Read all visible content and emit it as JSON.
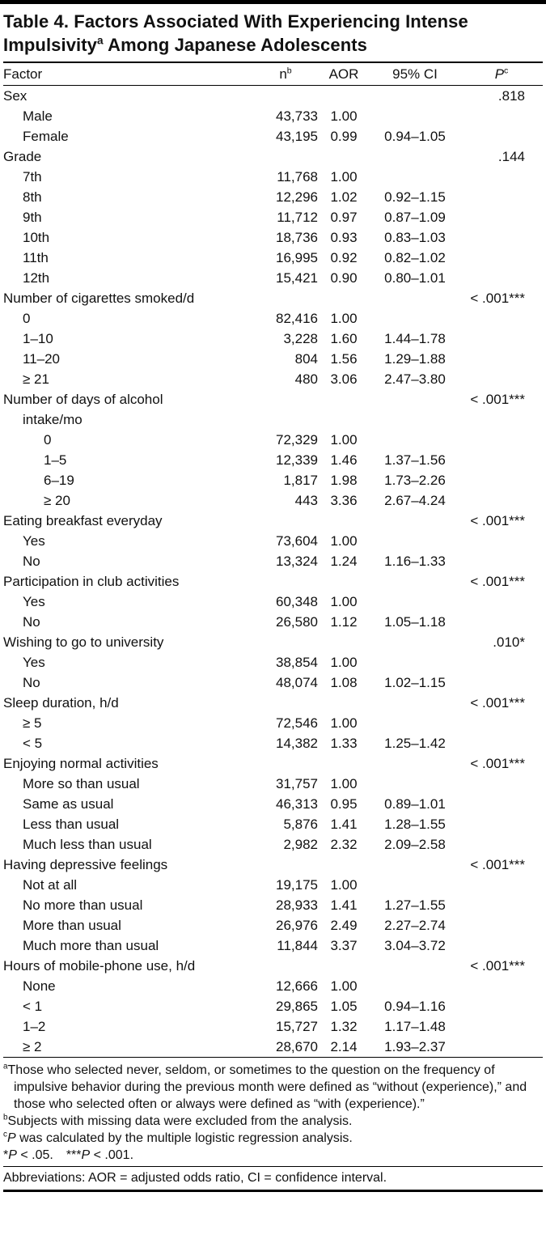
{
  "title": {
    "line1": "Table 4. Factors Associated With Experiencing Intense",
    "line2_pre": "Impulsivity",
    "line2_sup": "a",
    "line2_post": " Among Japanese Adolescents"
  },
  "table": {
    "headers": {
      "factor": "Factor",
      "n": "n",
      "n_sup": "b",
      "aor": "AOR",
      "ci": "95% CI",
      "p": "P",
      "p_sup": "c"
    },
    "rows": [
      {
        "label": "Sex",
        "indent": 0,
        "n": "",
        "aor": "",
        "ci": "",
        "p": ".818"
      },
      {
        "label": "Male",
        "indent": 1,
        "n": "43,733",
        "aor": "1.00",
        "ci": "",
        "p": ""
      },
      {
        "label": "Female",
        "indent": 1,
        "n": "43,195",
        "aor": "0.99",
        "ci": "0.94–1.05",
        "p": ""
      },
      {
        "label": "Grade",
        "indent": 0,
        "n": "",
        "aor": "",
        "ci": "",
        "p": ".144"
      },
      {
        "label": "7th",
        "indent": 1,
        "n": "11,768",
        "aor": "1.00",
        "ci": "",
        "p": ""
      },
      {
        "label": "8th",
        "indent": 1,
        "n": "12,296",
        "aor": "1.02",
        "ci": "0.92–1.15",
        "p": ""
      },
      {
        "label": "9th",
        "indent": 1,
        "n": "11,712",
        "aor": "0.97",
        "ci": "0.87–1.09",
        "p": ""
      },
      {
        "label": "10th",
        "indent": 1,
        "n": "18,736",
        "aor": "0.93",
        "ci": "0.83–1.03",
        "p": ""
      },
      {
        "label": "11th",
        "indent": 1,
        "n": "16,995",
        "aor": "0.92",
        "ci": "0.82–1.02",
        "p": ""
      },
      {
        "label": "12th",
        "indent": 1,
        "n": "15,421",
        "aor": "0.90",
        "ci": "0.80–1.01",
        "p": ""
      },
      {
        "label": "Number of cigarettes smoked/d",
        "indent": 0,
        "n": "",
        "aor": "",
        "ci": "",
        "p": "< .001***"
      },
      {
        "label": "0",
        "indent": 1,
        "n": "82,416",
        "aor": "1.00",
        "ci": "",
        "p": ""
      },
      {
        "label": "1–10",
        "indent": 1,
        "n": "3,228",
        "aor": "1.60",
        "ci": "1.44–1.78",
        "p": ""
      },
      {
        "label": "11–20",
        "indent": 1,
        "n": "804",
        "aor": "1.56",
        "ci": "1.29–1.88",
        "p": ""
      },
      {
        "label": "≥ 21",
        "indent": 1,
        "n": "480",
        "aor": "3.06",
        "ci": "2.47–3.80",
        "p": ""
      },
      {
        "label": "Number of days of alcohol",
        "indent": 0,
        "n": "",
        "aor": "",
        "ci": "",
        "p": "< .001***"
      },
      {
        "label": "intake/mo",
        "indent": 1,
        "n": "",
        "aor": "",
        "ci": "",
        "p": ""
      },
      {
        "label": "0",
        "indent": 2,
        "n": "72,329",
        "aor": "1.00",
        "ci": "",
        "p": ""
      },
      {
        "label": "1–5",
        "indent": 2,
        "n": "12,339",
        "aor": "1.46",
        "ci": "1.37–1.56",
        "p": ""
      },
      {
        "label": "6–19",
        "indent": 2,
        "n": "1,817",
        "aor": "1.98",
        "ci": "1.73–2.26",
        "p": ""
      },
      {
        "label": "≥ 20",
        "indent": 2,
        "n": "443",
        "aor": "3.36",
        "ci": "2.67–4.24",
        "p": ""
      },
      {
        "label": "Eating breakfast everyday",
        "indent": 0,
        "n": "",
        "aor": "",
        "ci": "",
        "p": "< .001***"
      },
      {
        "label": "Yes",
        "indent": 1,
        "n": "73,604",
        "aor": "1.00",
        "ci": "",
        "p": ""
      },
      {
        "label": "No",
        "indent": 1,
        "n": "13,324",
        "aor": "1.24",
        "ci": "1.16–1.33",
        "p": ""
      },
      {
        "label": "Participation in club activities",
        "indent": 0,
        "n": "",
        "aor": "",
        "ci": "",
        "p": "< .001***"
      },
      {
        "label": "Yes",
        "indent": 1,
        "n": "60,348",
        "aor": "1.00",
        "ci": "",
        "p": ""
      },
      {
        "label": "No",
        "indent": 1,
        "n": "26,580",
        "aor": "1.12",
        "ci": "1.05–1.18",
        "p": ""
      },
      {
        "label": "Wishing to go to university",
        "indent": 0,
        "n": "",
        "aor": "",
        "ci": "",
        "p": ".010*"
      },
      {
        "label": "Yes",
        "indent": 1,
        "n": "38,854",
        "aor": "1.00",
        "ci": "",
        "p": ""
      },
      {
        "label": "No",
        "indent": 1,
        "n": "48,074",
        "aor": "1.08",
        "ci": "1.02–1.15",
        "p": ""
      },
      {
        "label": "Sleep duration, h/d",
        "indent": 0,
        "n": "",
        "aor": "",
        "ci": "",
        "p": "< .001***"
      },
      {
        "label": "≥ 5",
        "indent": 1,
        "n": "72,546",
        "aor": "1.00",
        "ci": "",
        "p": ""
      },
      {
        "label": "< 5",
        "indent": 1,
        "n": "14,382",
        "aor": "1.33",
        "ci": "1.25–1.42",
        "p": ""
      },
      {
        "label": "Enjoying normal activities",
        "indent": 0,
        "n": "",
        "aor": "",
        "ci": "",
        "p": "< .001***"
      },
      {
        "label": "More so than usual",
        "indent": 1,
        "n": "31,757",
        "aor": "1.00",
        "ci": "",
        "p": ""
      },
      {
        "label": "Same as usual",
        "indent": 1,
        "n": "46,313",
        "aor": "0.95",
        "ci": "0.89–1.01",
        "p": ""
      },
      {
        "label": "Less than usual",
        "indent": 1,
        "n": "5,876",
        "aor": "1.41",
        "ci": "1.28–1.55",
        "p": ""
      },
      {
        "label": "Much less than usual",
        "indent": 1,
        "n": "2,982",
        "aor": "2.32",
        "ci": "2.09–2.58",
        "p": ""
      },
      {
        "label": "Having depressive feelings",
        "indent": 0,
        "n": "",
        "aor": "",
        "ci": "",
        "p": "< .001***"
      },
      {
        "label": "Not at all",
        "indent": 1,
        "n": "19,175",
        "aor": "1.00",
        "ci": "",
        "p": ""
      },
      {
        "label": "No more than usual",
        "indent": 1,
        "n": "28,933",
        "aor": "1.41",
        "ci": "1.27–1.55",
        "p": ""
      },
      {
        "label": "More than usual",
        "indent": 1,
        "n": "26,976",
        "aor": "2.49",
        "ci": "2.27–2.74",
        "p": ""
      },
      {
        "label": "Much more than usual",
        "indent": 1,
        "n": "11,844",
        "aor": "3.37",
        "ci": "3.04–3.72",
        "p": ""
      },
      {
        "label": "Hours of mobile-phone use, h/d",
        "indent": 0,
        "n": "",
        "aor": "",
        "ci": "",
        "p": "< .001***"
      },
      {
        "label": "None",
        "indent": 1,
        "n": "12,666",
        "aor": "1.00",
        "ci": "",
        "p": ""
      },
      {
        "label": "< 1",
        "indent": 1,
        "n": "29,865",
        "aor": "1.05",
        "ci": "0.94–1.16",
        "p": ""
      },
      {
        "label": "1–2",
        "indent": 1,
        "n": "15,727",
        "aor": "1.32",
        "ci": "1.17–1.48",
        "p": ""
      },
      {
        "label": "≥ 2",
        "indent": 1,
        "n": "28,670",
        "aor": "2.14",
        "ci": "1.93–2.37",
        "p": ""
      }
    ]
  },
  "footnotes": [
    {
      "sup": "a",
      "segments": [
        {
          "t": "Those who selected never, seldom, or sometimes to the question on the frequency of impulsive behavior during the previous month were defined as “without (experience),” and those who selected often or always were defined as “with (experience).”"
        }
      ]
    },
    {
      "sup": "b",
      "segments": [
        {
          "t": "Subjects with missing data were excluded from the analysis."
        }
      ]
    },
    {
      "sup": "c",
      "segments": [
        {
          "t": "P",
          "i": true
        },
        {
          "t": " was calculated by the multiple logistic regression analysis."
        }
      ]
    },
    {
      "sup": "",
      "segments": [
        {
          "t": "*"
        },
        {
          "t": "P",
          "i": true
        },
        {
          "t": " < .05. ***"
        },
        {
          "t": "P",
          "i": true
        },
        {
          "t": " < .001."
        }
      ]
    }
  ],
  "abbreviations": "Abbreviations: AOR = adjusted odds ratio, CI = confidence interval.",
  "colors": {
    "background": "#ffffff",
    "text": "#111111",
    "rule": "#000000"
  }
}
